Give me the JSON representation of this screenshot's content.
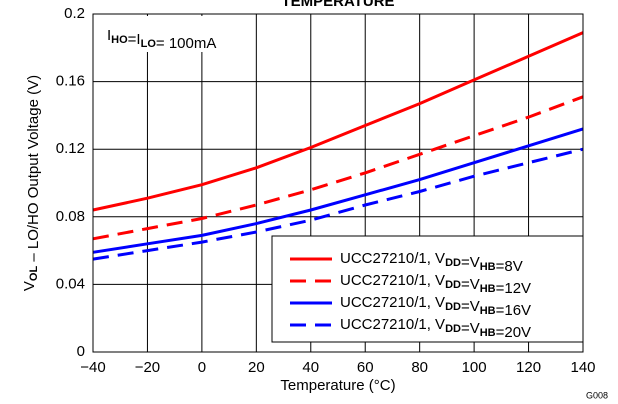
{
  "chart_data": {
    "type": "line",
    "title": "TEMPERATURE",
    "x_label": "Temperature (°C)",
    "y_label": "VOL – LO/HO Output Voltage (V)",
    "annotation": "IHO=ILO= 100mA",
    "figure_id": "G008",
    "x": [
      -40,
      -20,
      0,
      20,
      40,
      60,
      80,
      100,
      120,
      140
    ],
    "series": [
      {
        "name": "UCC27210/1, VDD=VHB=8V",
        "color": "#ff0000",
        "dashed": false,
        "values": [
          0.084,
          0.091,
          0.099,
          0.109,
          0.121,
          0.134,
          0.147,
          0.161,
          0.175,
          0.189
        ]
      },
      {
        "name": "UCC27210/1, VDD=VHB=12V",
        "color": "#ff0000",
        "dashed": true,
        "values": [
          0.067,
          0.073,
          0.079,
          0.087,
          0.096,
          0.106,
          0.117,
          0.128,
          0.139,
          0.151
        ]
      },
      {
        "name": "UCC27210/1, VDD=VHB=16V",
        "color": "#0000ff",
        "dashed": false,
        "values": [
          0.059,
          0.064,
          0.069,
          0.076,
          0.084,
          0.093,
          0.102,
          0.112,
          0.122,
          0.132
        ]
      },
      {
        "name": "UCC27210/1, VDD=VHB=20V",
        "color": "#0000ff",
        "dashed": true,
        "values": [
          0.055,
          0.06,
          0.065,
          0.071,
          0.078,
          0.087,
          0.095,
          0.104,
          0.112,
          0.12
        ]
      }
    ],
    "xlim": [
      -40,
      140
    ],
    "ylim": [
      0,
      0.2
    ],
    "xticks": [
      {
        "value": -40,
        "label": "−40"
      },
      {
        "value": -20,
        "label": "−20"
      },
      0,
      20,
      40,
      60,
      80,
      100,
      120,
      140
    ],
    "yticks": [
      0,
      0.04,
      0.08,
      0.12,
      0.16,
      0.2
    ],
    "grid": true,
    "legend": "lower right"
  }
}
